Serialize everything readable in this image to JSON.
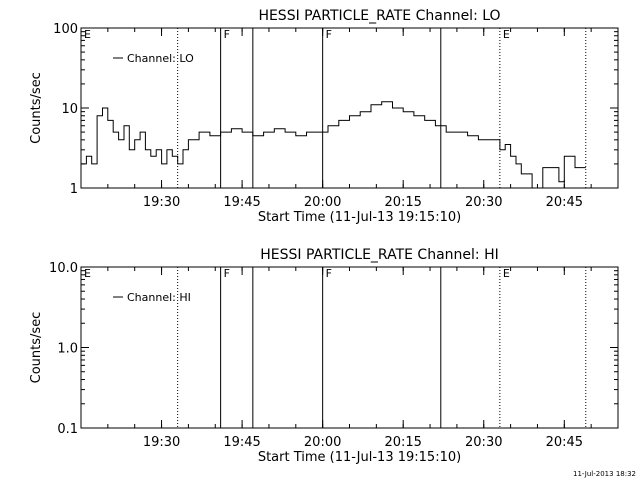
{
  "footer": {
    "timestamp": "11-Jul-2013 18:32"
  },
  "chart_data": [
    {
      "type": "line",
      "title": "HESSI PARTICLE_RATE Channel: LO",
      "xlabel": "Start Time (11-Jul-13 19:15:10)",
      "ylabel": "Counts/sec",
      "yscale": "log",
      "ylim": [
        1,
        100
      ],
      "yticks": [
        {
          "value": 1,
          "label": "1"
        },
        {
          "value": 10,
          "label": "10"
        },
        {
          "value": 100,
          "label": "100"
        }
      ],
      "xlim": [
        "19:15",
        "20:55"
      ],
      "xticks": [
        "19:30",
        "19:45",
        "20:00",
        "20:15",
        "20:30",
        "20:45"
      ],
      "legend": {
        "position": "top-left",
        "entries": [
          "Channel: LO"
        ]
      },
      "markers": [
        {
          "time": "19:33",
          "style": "dotted",
          "label": ""
        },
        {
          "time": "19:41",
          "style": "solid",
          "label": "F"
        },
        {
          "time": "19:47",
          "style": "solid",
          "label": ""
        },
        {
          "time": "20:00",
          "style": "solid",
          "label": "F"
        },
        {
          "time": "20:22",
          "style": "solid",
          "label": ""
        },
        {
          "time": "20:33",
          "style": "dotted",
          "label": "E"
        },
        {
          "time": "20:49",
          "style": "dotted",
          "label": ""
        },
        {
          "time": "19:15",
          "style": "none",
          "label": "E"
        }
      ],
      "series": [
        {
          "name": "Channel: LO",
          "x": [
            "19:15",
            "19:16",
            "19:17",
            "19:18",
            "19:19",
            "19:20",
            "19:21",
            "19:22",
            "19:23",
            "19:24",
            "19:25",
            "19:26",
            "19:27",
            "19:28",
            "19:29",
            "19:30",
            "19:31",
            "19:32",
            "19:33",
            "19:34",
            "19:35",
            "19:37",
            "19:39",
            "19:41",
            "19:43",
            "19:45",
            "19:47",
            "19:49",
            "19:51",
            "19:53",
            "19:55",
            "19:57",
            "19:59",
            "20:01",
            "20:03",
            "20:05",
            "20:07",
            "20:09",
            "20:11",
            "20:13",
            "20:15",
            "20:17",
            "20:19",
            "20:21",
            "20:23",
            "20:25",
            "20:27",
            "20:29",
            "20:31",
            "20:33",
            "20:34",
            "20:35",
            "20:36",
            "20:37",
            "20:39",
            "20:41",
            "20:43",
            "20:44",
            "20:45",
            "20:47",
            "20:49"
          ],
          "y": [
            2,
            2.5,
            2,
            8,
            10,
            7,
            5,
            4,
            6,
            3,
            4,
            5,
            3,
            2.5,
            3,
            2,
            3,
            2.5,
            2,
            3,
            4,
            5,
            4.5,
            5,
            5.5,
            5,
            4.5,
            5,
            5.5,
            5,
            4.5,
            5,
            5,
            6,
            7,
            8,
            9,
            11,
            12,
            10,
            9,
            8,
            7,
            6,
            5,
            5,
            4.5,
            4,
            4,
            3,
            3.5,
            2.5,
            2,
            1.5,
            1,
            1.8,
            1.8,
            1.2,
            2.5,
            1.8,
            1.8
          ]
        }
      ]
    },
    {
      "type": "line",
      "title": "HESSI PARTICLE_RATE Channel: HI",
      "xlabel": "Start Time (11-Jul-13 19:15:10)",
      "ylabel": "Counts/sec",
      "yscale": "log",
      "ylim": [
        0.1,
        10
      ],
      "yticks": [
        {
          "value": 0.1,
          "label": "0.1"
        },
        {
          "value": 1,
          "label": "1.0"
        },
        {
          "value": 10,
          "label": "10.0"
        }
      ],
      "xlim": [
        "19:15",
        "20:55"
      ],
      "xticks": [
        "19:30",
        "19:45",
        "20:00",
        "20:15",
        "20:30",
        "20:45"
      ],
      "legend": {
        "position": "top-left",
        "entries": [
          "Channel: HI"
        ]
      },
      "markers": [
        {
          "time": "19:33",
          "style": "dotted",
          "label": ""
        },
        {
          "time": "19:41",
          "style": "solid",
          "label": "F"
        },
        {
          "time": "19:47",
          "style": "solid",
          "label": ""
        },
        {
          "time": "20:00",
          "style": "solid",
          "label": "F"
        },
        {
          "time": "20:22",
          "style": "solid",
          "label": ""
        },
        {
          "time": "20:33",
          "style": "dotted",
          "label": "E"
        },
        {
          "time": "20:49",
          "style": "dotted",
          "label": ""
        },
        {
          "time": "19:15",
          "style": "none",
          "label": "E"
        }
      ],
      "series": [
        {
          "name": "Channel: HI",
          "x": [],
          "y": []
        }
      ]
    }
  ]
}
